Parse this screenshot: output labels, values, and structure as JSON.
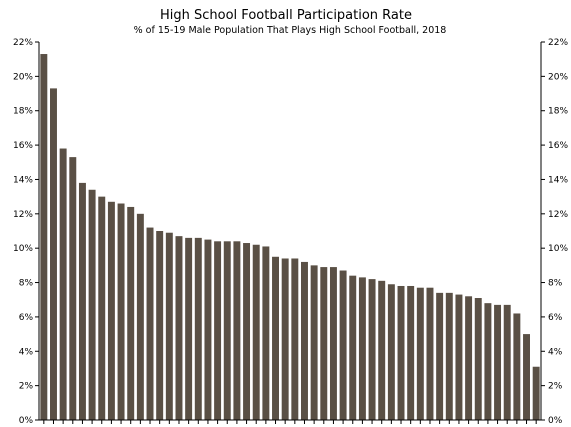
{
  "chart_data": {
    "type": "bar",
    "title": "High School Football Participation Rate",
    "subtitle": "% of 15-19 Male Population That Plays High School Football, 2018",
    "xlabel": "",
    "ylabel": "",
    "ylim": [
      0,
      22
    ],
    "yticks": [
      0,
      2,
      4,
      6,
      8,
      10,
      12,
      14,
      16,
      18,
      20,
      22
    ],
    "ytick_format": "%",
    "grid": false,
    "bar_color": "#5a5045",
    "values": [
      21.3,
      19.3,
      15.8,
      15.3,
      13.8,
      13.4,
      13.0,
      12.7,
      12.6,
      12.4,
      12.0,
      11.2,
      11.0,
      10.9,
      10.7,
      10.6,
      10.6,
      10.5,
      10.4,
      10.4,
      10.4,
      10.3,
      10.2,
      10.1,
      9.5,
      9.4,
      9.4,
      9.2,
      9.0,
      8.9,
      8.9,
      8.7,
      8.4,
      8.3,
      8.2,
      8.1,
      7.9,
      7.8,
      7.8,
      7.7,
      7.7,
      7.4,
      7.4,
      7.3,
      7.2,
      7.1,
      6.8,
      6.7,
      6.7,
      6.2,
      5.0,
      3.1
    ]
  }
}
